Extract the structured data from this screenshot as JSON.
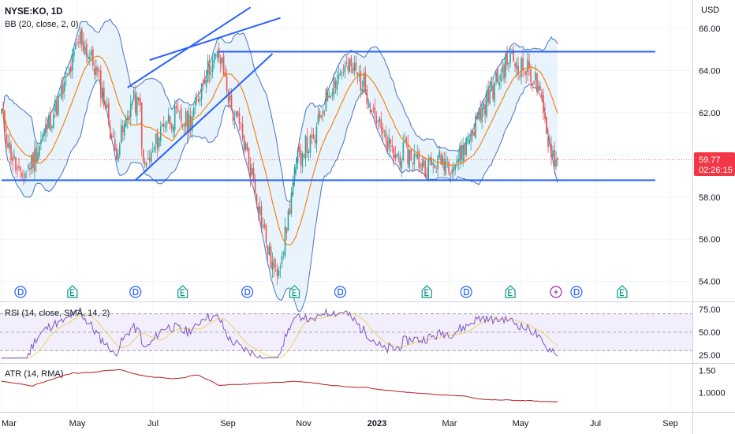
{
  "header": {
    "symbol": "NYSE:KO, 1D",
    "indicator": "BB (20, close, 2, 0)",
    "currency": "USD"
  },
  "price_tag": {
    "price": "59.77",
    "countdown": "02:26:15"
  },
  "colors": {
    "up": "#26a69a",
    "down": "#ef5350",
    "bb_band": "#4a72c8",
    "bb_fill": "#e3f0fb",
    "basis": "#f57c00",
    "trendline": "#2962ff",
    "rsi": "#7e57c2",
    "rsi_ma": "#f0d264",
    "rsi_fill": "#f2eefb",
    "atr": "#b71c1c",
    "price_tag": "#f23645"
  },
  "chart_data": [
    {
      "type": "candlestick",
      "pane": "price",
      "ylim": [
        53.2,
        67.2
      ],
      "y_ticks": [
        "54.00",
        "56.00",
        "58.00",
        "60.00",
        "62.00",
        "64.00",
        "66.00"
      ],
      "x_ticks": [
        "Mar",
        "May",
        "Jul",
        "Sep",
        "Nov",
        "2023",
        "Mar",
        "May",
        "Jul",
        "Sep"
      ],
      "close_anchors": [
        [
          0,
          62.0
        ],
        [
          5,
          60.3
        ],
        [
          12,
          58.8
        ],
        [
          20,
          59.8
        ],
        [
          30,
          61.5
        ],
        [
          40,
          63.2
        ],
        [
          50,
          65.6
        ],
        [
          55,
          64.8
        ],
        [
          60,
          64.0
        ],
        [
          66,
          62.4
        ],
        [
          72,
          60.1
        ],
        [
          78,
          61.3
        ],
        [
          83,
          62.6
        ],
        [
          88,
          62.2
        ],
        [
          90,
          59.3
        ],
        [
          95,
          59.9
        ],
        [
          103,
          61.6
        ],
        [
          110,
          61.8
        ],
        [
          118,
          61.5
        ],
        [
          124,
          62.4
        ],
        [
          128,
          63.7
        ],
        [
          133,
          64.3
        ],
        [
          138,
          64.7
        ],
        [
          141,
          63.9
        ],
        [
          146,
          62.1
        ],
        [
          150,
          61.5
        ],
        [
          155,
          60.3
        ],
        [
          160,
          58.8
        ],
        [
          165,
          57.0
        ],
        [
          170,
          55.2
        ],
        [
          174,
          54.3
        ],
        [
          180,
          56.1
        ],
        [
          185,
          58.6
        ],
        [
          188,
          59.7
        ],
        [
          192,
          60.4
        ],
        [
          198,
          60.5
        ],
        [
          204,
          62.3
        ],
        [
          210,
          63.4
        ],
        [
          217,
          64.1
        ],
        [
          224,
          64.0
        ],
        [
          230,
          63.3
        ],
        [
          236,
          62.2
        ],
        [
          243,
          60.7
        ],
        [
          250,
          59.9
        ],
        [
          256,
          60.1
        ],
        [
          262,
          59.9
        ],
        [
          268,
          59.5
        ],
        [
          274,
          59.5
        ],
        [
          280,
          59.8
        ],
        [
          287,
          59.6
        ],
        [
          292,
          60.1
        ],
        [
          298,
          61.0
        ],
        [
          304,
          62.0
        ],
        [
          310,
          62.9
        ],
        [
          316,
          63.7
        ],
        [
          322,
          64.6
        ],
        [
          326,
          64.4
        ],
        [
          331,
          64.1
        ],
        [
          335,
          64.0
        ],
        [
          339,
          63.5
        ],
        [
          342,
          62.6
        ],
        [
          346,
          61.1
        ],
        [
          349,
          60.3
        ],
        [
          352,
          59.7
        ],
        [
          353,
          59.77
        ]
      ],
      "bollinger": {
        "period": 20,
        "mult": 2
      },
      "trendlines": [
        {
          "from": [
            0,
            58.8
          ],
          "to": [
            415,
            58.8
          ]
        },
        {
          "from": [
            138,
            64.9
          ],
          "to": [
            415,
            64.9
          ]
        },
        {
          "from": [
            85,
            58.8
          ],
          "to": [
            172,
            64.8
          ]
        },
        {
          "from": [
            80,
            63.2
          ],
          "to": [
            158,
            67.0
          ]
        },
        {
          "from": [
            94,
            64.5
          ],
          "to": [
            177,
            66.5
          ]
        }
      ],
      "events": [
        {
          "x": 12,
          "type": "D"
        },
        {
          "x": 45,
          "type": "E"
        },
        {
          "x": 85,
          "type": "D"
        },
        {
          "x": 115,
          "type": "E"
        },
        {
          "x": 156,
          "type": "D"
        },
        {
          "x": 186,
          "type": "E"
        },
        {
          "x": 215,
          "type": "D"
        },
        {
          "x": 270,
          "type": "E"
        },
        {
          "x": 295,
          "type": "D"
        },
        {
          "x": 323,
          "type": "E"
        },
        {
          "x": 352,
          "type": "split"
        },
        {
          "x": 365,
          "type": "D"
        },
        {
          "x": 394,
          "type": "E"
        }
      ]
    },
    {
      "type": "line",
      "pane": "rsi",
      "title": "RSI (14, close, SMA, 14, 2)",
      "ylim": [
        20,
        80
      ],
      "y_ticks": [
        "25.00",
        "50.00",
        "75.00"
      ],
      "band": [
        30,
        70
      ]
    },
    {
      "type": "line",
      "pane": "atr",
      "title": "ATR (14, RMA)",
      "ylim": [
        0.62,
        1.62
      ],
      "y_ticks": [
        "1.0000",
        "1.50"
      ]
    }
  ]
}
